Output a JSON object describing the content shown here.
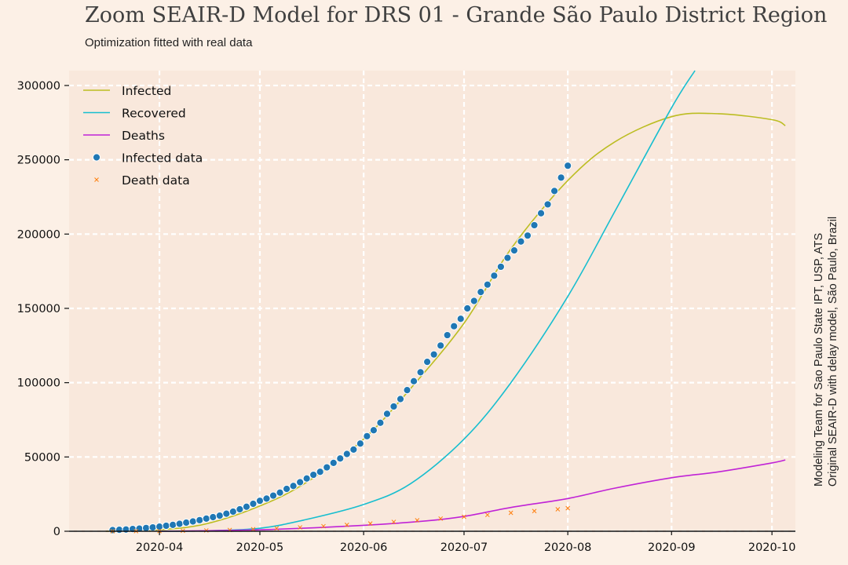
{
  "header": {
    "title": "Zoom SEAIR-D Model for DRS 01 - Grande São Paulo District Region",
    "subtitle": "Optimization fitted with real data"
  },
  "side_note": {
    "line1": "Modeling Team for Sao Paulo State IPT, USP, ATS",
    "line2": "Original SEAIR-D with delay model, São Paulo, Brazil"
  },
  "colors": {
    "background": "#fcf0e6",
    "plot_background": "#f9e8dc",
    "grid": "#ffffff",
    "infected": "#bcbd22",
    "recovered": "#17becf",
    "deaths": "#c023d6",
    "infected_data": "#1f77b4",
    "death_data": "#ff7f0e"
  },
  "chart_data": {
    "type": "line",
    "title": "Zoom SEAIR-D Model for DRS 01 - Grande São Paulo District Region",
    "subtitle": "Optimization fitted with real data",
    "xlabel": "",
    "ylabel": "",
    "x_type": "date",
    "xlim": [
      "2020-03-05",
      "2020-10-08"
    ],
    "ylim": [
      0,
      310000
    ],
    "x_ticks": [
      "2020-04",
      "2020-05",
      "2020-06",
      "2020-07",
      "2020-08",
      "2020-09",
      "2020-10"
    ],
    "y_ticks": [
      "0",
      "50000",
      "100000",
      "150000",
      "200000",
      "250000",
      "300000"
    ],
    "grid": true,
    "legend_position": "top-left",
    "series": [
      {
        "name": "Infected",
        "kind": "line",
        "color_key": "infected",
        "x": [
          "2020-03-16",
          "2020-04-01",
          "2020-04-15",
          "2020-05-01",
          "2020-05-15",
          "2020-06-01",
          "2020-06-15",
          "2020-07-01",
          "2020-07-15",
          "2020-08-01",
          "2020-08-15",
          "2020-09-01",
          "2020-09-15",
          "2020-10-01",
          "2020-10-05"
        ],
        "y": [
          0,
          1000,
          5000,
          17000,
          33000,
          62000,
          96000,
          140000,
          190000,
          236000,
          262000,
          279000,
          281000,
          277000,
          273000
        ]
      },
      {
        "name": "Recovered",
        "kind": "line",
        "color_key": "recovered",
        "x": [
          "2020-04-01",
          "2020-04-15",
          "2020-05-01",
          "2020-05-15",
          "2020-06-01",
          "2020-06-15",
          "2020-07-01",
          "2020-07-15",
          "2020-08-01",
          "2020-08-15",
          "2020-09-01",
          "2020-09-08"
        ],
        "y": [
          0,
          300,
          2000,
          8000,
          18000,
          32000,
          62000,
          100000,
          158000,
          215000,
          285000,
          310000
        ]
      },
      {
        "name": "Deaths",
        "kind": "line",
        "color_key": "deaths",
        "x": [
          "2020-04-01",
          "2020-05-01",
          "2020-06-01",
          "2020-06-20",
          "2020-07-01",
          "2020-07-15",
          "2020-08-01",
          "2020-08-15",
          "2020-09-01",
          "2020-09-15",
          "2020-10-01",
          "2020-10-05"
        ],
        "y": [
          0,
          1000,
          4000,
          7000,
          10000,
          16000,
          22000,
          29000,
          36000,
          40000,
          46000,
          48000
        ]
      },
      {
        "name": "Infected data",
        "kind": "scatter",
        "marker": "dot",
        "color_key": "infected_data",
        "x": [
          "2020-03-18",
          "2020-03-20",
          "2020-03-22",
          "2020-03-24",
          "2020-03-26",
          "2020-03-28",
          "2020-03-30",
          "2020-04-01",
          "2020-04-03",
          "2020-04-05",
          "2020-04-07",
          "2020-04-09",
          "2020-04-11",
          "2020-04-13",
          "2020-04-15",
          "2020-04-17",
          "2020-04-19",
          "2020-04-21",
          "2020-04-23",
          "2020-04-25",
          "2020-04-27",
          "2020-04-29",
          "2020-05-01",
          "2020-05-03",
          "2020-05-05",
          "2020-05-07",
          "2020-05-09",
          "2020-05-11",
          "2020-05-13",
          "2020-05-15",
          "2020-05-17",
          "2020-05-19",
          "2020-05-21",
          "2020-05-23",
          "2020-05-25",
          "2020-05-27",
          "2020-05-29",
          "2020-05-31",
          "2020-06-02",
          "2020-06-04",
          "2020-06-06",
          "2020-06-08",
          "2020-06-10",
          "2020-06-12",
          "2020-06-14",
          "2020-06-16",
          "2020-06-18",
          "2020-06-20",
          "2020-06-22",
          "2020-06-24",
          "2020-06-26",
          "2020-06-28",
          "2020-06-30",
          "2020-07-02",
          "2020-07-04",
          "2020-07-06",
          "2020-07-08",
          "2020-07-10",
          "2020-07-12",
          "2020-07-14",
          "2020-07-16",
          "2020-07-18",
          "2020-07-20",
          "2020-07-22",
          "2020-07-24",
          "2020-07-26",
          "2020-07-28",
          "2020-07-30",
          "2020-08-01"
        ],
        "y": [
          800,
          1000,
          1200,
          1500,
          1800,
          2200,
          2600,
          3100,
          3700,
          4300,
          5000,
          5800,
          6600,
          7500,
          8500,
          9500,
          10500,
          11800,
          13200,
          14800,
          16500,
          18500,
          20500,
          22000,
          24000,
          26000,
          28500,
          30500,
          33000,
          35500,
          38000,
          40000,
          43000,
          46000,
          49000,
          52000,
          55000,
          59000,
          64000,
          68000,
          73000,
          79000,
          84000,
          89000,
          95000,
          101000,
          107000,
          114000,
          119000,
          125000,
          132000,
          138000,
          143000,
          150000,
          155000,
          161000,
          166000,
          172000,
          178000,
          184000,
          189000,
          195000,
          199000,
          206000,
          214000,
          220000,
          229000,
          238000,
          246000
        ]
      },
      {
        "name": "Death data",
        "kind": "scatter",
        "marker": "x",
        "color_key": "death_data",
        "x": [
          "2020-03-18",
          "2020-03-25",
          "2020-04-01",
          "2020-04-08",
          "2020-04-15",
          "2020-04-22",
          "2020-04-29",
          "2020-05-06",
          "2020-05-13",
          "2020-05-20",
          "2020-05-27",
          "2020-06-03",
          "2020-06-10",
          "2020-06-17",
          "2020-06-24",
          "2020-07-01",
          "2020-07-08",
          "2020-07-15",
          "2020-07-22",
          "2020-07-29",
          "2020-08-01"
        ],
        "y": [
          0,
          50,
          120,
          300,
          550,
          900,
          1400,
          2000,
          2600,
          3400,
          4300,
          5200,
          6300,
          7400,
          8500,
          9700,
          11000,
          12400,
          13600,
          14800,
          15500
        ]
      }
    ]
  }
}
